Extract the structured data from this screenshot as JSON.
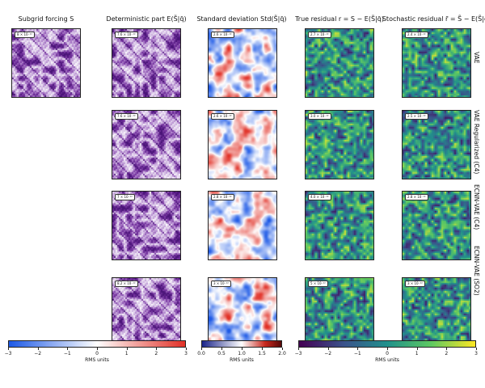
{
  "columns": [
    {
      "title": "Subgrid forcing S"
    },
    {
      "title": "Deterministic part E(S̃|q̄)"
    },
    {
      "title": "Standard deviation Std(S̃|q̄)"
    },
    {
      "title": "True residual r = S − E(S̃|q̄)"
    },
    {
      "title": "Stochastic residual r̃ = S̃ − E(S̃|q̄)"
    }
  ],
  "rows": [
    {
      "label": "VAE",
      "rms": [
        "8 × 10⁻¹²",
        "7.6 × 10⁻¹²",
        "2.6 × 10⁻¹²",
        "2.7 × 10⁻¹²",
        "2.4 × 10⁻¹²"
      ]
    },
    {
      "label": "VAE Regularized (C4)",
      "rms": [
        "",
        "7.6 × 10⁻¹²",
        "2.6 × 10⁻¹²",
        "3.0 × 10⁻¹²",
        "2.5 × 10⁻¹²"
      ]
    },
    {
      "label": "ECNN-VAE (C4)",
      "rms": [
        "",
        "7 × 10⁻¹²",
        "2.8 × 10⁻¹²",
        "4.0 × 10⁻¹²",
        "2.8 × 10⁻¹²"
      ]
    },
    {
      "label": "ECNN-VAE (SO2)",
      "rms": [
        "",
        "8.2 × 10⁻¹²",
        "3 × 10⁻¹²",
        "5 × 10⁻¹²",
        "3 × 10⁻¹²"
      ]
    }
  ],
  "colorbars": [
    {
      "name": "bwr",
      "ticks": [
        "−3",
        "−2",
        "−1",
        "0",
        "1",
        "2",
        "3"
      ],
      "min": -3,
      "max": 3,
      "label": "RMS units"
    },
    {
      "name": "seismic-positive",
      "ticks": [
        "0.0",
        "0.5",
        "1.0",
        "1.5",
        "2.0"
      ],
      "min": 0,
      "max": 2,
      "label": "RMS units"
    },
    {
      "name": "viridis",
      "ticks": [
        "−3",
        "−2",
        "−1",
        "0",
        "1",
        "2",
        "3"
      ],
      "min": -3,
      "max": 3,
      "label": "RMS units"
    }
  ],
  "colors": {
    "purple": "#6a1b9a",
    "red": "#c62828",
    "blue": "#1e88e5",
    "viridis_mid": "#21918c",
    "viridis_high": "#fde725"
  }
}
